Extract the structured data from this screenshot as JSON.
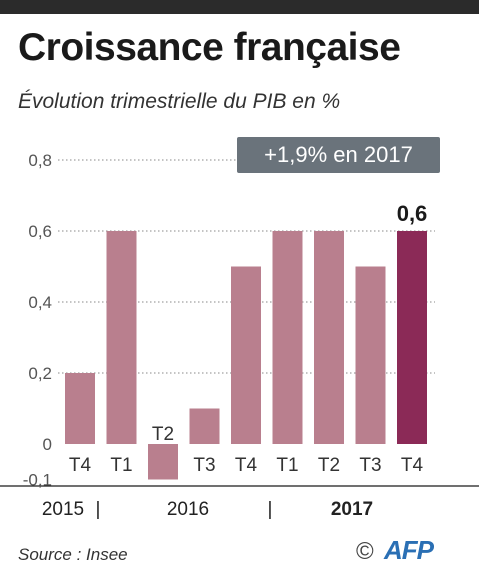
{
  "title": "Croissance française",
  "subtitle": "Évolution trimestrielle du PIB en %",
  "badge": "+1,9% en 2017",
  "source": "Source : Insee",
  "copyright_symbol": "©",
  "logo_text": "AFP",
  "colors": {
    "bar": "#b97f8e",
    "highlight": "#8b2a57",
    "badge_bg": "#6a737b",
    "grid": "#888888",
    "logo": "#2a6fb4"
  },
  "chart_data": {
    "type": "bar",
    "title": "Croissance française",
    "subtitle": "Évolution trimestrielle du PIB en %",
    "categories": [
      "T4",
      "T1",
      "T2",
      "T3",
      "T4",
      "T1",
      "T2",
      "T3",
      "T4"
    ],
    "values": [
      0.2,
      0.6,
      -0.1,
      0.1,
      0.5,
      0.6,
      0.6,
      0.5,
      0.6
    ],
    "years": [
      {
        "label": "2015",
        "bold": false
      },
      {
        "label": "2016",
        "bold": false
      },
      {
        "label": "2017",
        "bold": true
      }
    ],
    "year_separators": [
      "|",
      "|"
    ],
    "y_ticks": [
      "0,8",
      "0,6",
      "0,4",
      "0,2",
      "0",
      "-0,1"
    ],
    "y_tick_values": [
      0.8,
      0.6,
      0.4,
      0.2,
      0,
      -0.1
    ],
    "ylim": [
      -0.1,
      0.8
    ],
    "grid": true,
    "highlight_index": 8,
    "highlight_label": "0,6"
  }
}
